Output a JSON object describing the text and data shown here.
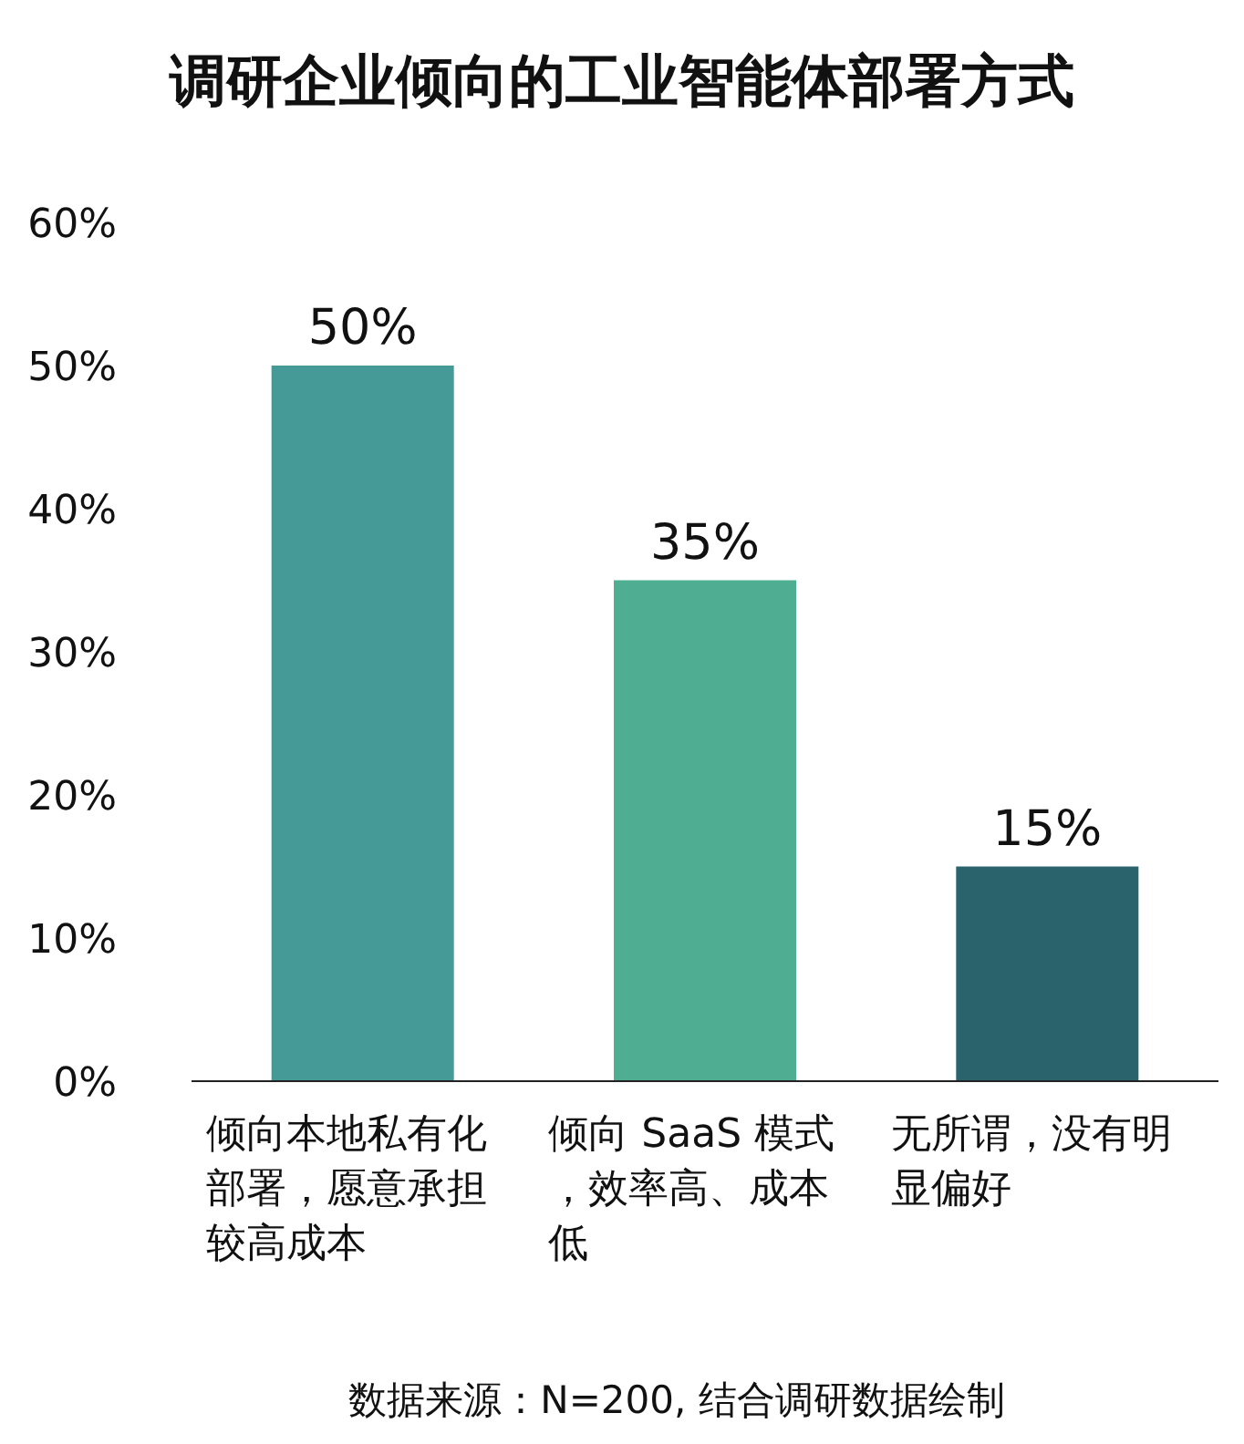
{
  "chart_data": {
    "type": "bar",
    "title": "调研企业倾向的工业智能体部署方式",
    "categories": [
      "倾向本地私有化部署，愿意承担较高成本",
      "倾向 SaaS 模式，效率高、成本低",
      "无所谓，没有明显偏好"
    ],
    "values": [
      50,
      35,
      15
    ],
    "value_labels": [
      "50%",
      "35%",
      "15%"
    ],
    "colors": [
      "#459a98",
      "#4fae91",
      "#2a636b"
    ],
    "ylim": [
      0,
      60
    ],
    "yticks": [
      {
        "value": 0,
        "label": "0%"
      },
      {
        "value": 10,
        "label": "10%"
      },
      {
        "value": 20,
        "label": "20%"
      },
      {
        "value": 30,
        "label": "30%"
      },
      {
        "value": 40,
        "label": "40%"
      },
      {
        "value": 50,
        "label": "50%"
      },
      {
        "value": 60,
        "label": "60%"
      }
    ],
    "annotations": [
      "数据来源：N=200, 结合调研数据绘制"
    ]
  }
}
